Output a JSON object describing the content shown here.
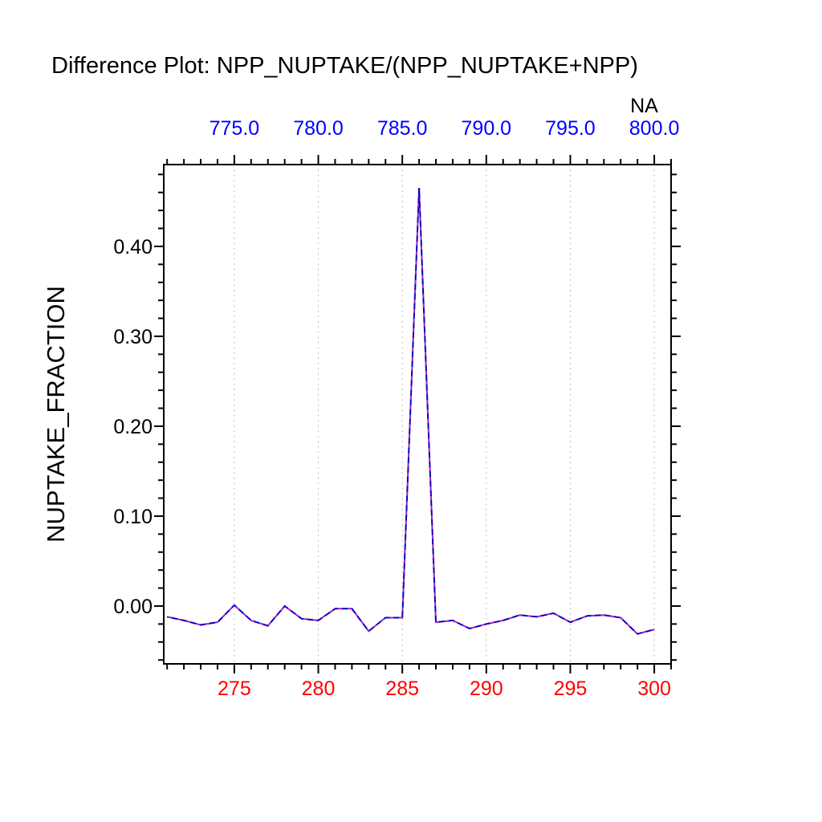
{
  "chart_data": {
    "type": "line",
    "title": "Difference Plot: NPP_NUPTAKE/(NPP_NUPTAKE+NPP)",
    "ylabel": "NUPTAKE_FRACTION",
    "grid": true,
    "legend": "none",
    "top_axis": {
      "title": "NA",
      "tick_values": [
        775,
        780,
        785,
        790,
        795,
        800
      ],
      "labels": [
        "775.0",
        "780.0",
        "785.0",
        "790.0",
        "795.0",
        "800.0"
      ],
      "color": "#0000ff"
    },
    "bottom_axis": {
      "tick_values": [
        275,
        280,
        285,
        290,
        295,
        300
      ],
      "labels": [
        "275",
        "280",
        "285",
        "290",
        "295",
        "300"
      ],
      "color": "#ff0000"
    },
    "xlim": [
      270.8,
      301.0
    ],
    "ylim": [
      -0.0643,
      0.491
    ],
    "y_major_values": [
      0.0,
      0.1,
      0.2,
      0.3,
      0.4
    ],
    "y_labels": [
      "0.00",
      "0.10",
      "0.20",
      "0.30",
      "0.40"
    ],
    "x_minor_step": 1,
    "y_minor_step": 0.02,
    "gridline_color": "#aaaaaa",
    "frame_color": "#000000",
    "series": [
      {
        "name": "nuptake-fraction-difference",
        "style": "dashed",
        "colors": [
          "#0000cc",
          "#aa22aa"
        ],
        "x": [
          271,
          272,
          273,
          274,
          275,
          276,
          277,
          278,
          279,
          280,
          281,
          282,
          283,
          284,
          285,
          286,
          287,
          288,
          289,
          290,
          291,
          292,
          293,
          294,
          295,
          296,
          297,
          298,
          299,
          300
        ],
        "y": [
          -0.012,
          -0.016,
          -0.021,
          -0.018,
          0.001,
          -0.016,
          -0.022,
          0.0,
          -0.014,
          -0.016,
          -0.003,
          -0.003,
          -0.028,
          -0.013,
          -0.013,
          0.465,
          -0.018,
          -0.016,
          -0.025,
          -0.02,
          -0.016,
          -0.01,
          -0.012,
          -0.008,
          -0.018,
          -0.011,
          -0.01,
          -0.013,
          -0.031,
          -0.026
        ]
      }
    ]
  }
}
